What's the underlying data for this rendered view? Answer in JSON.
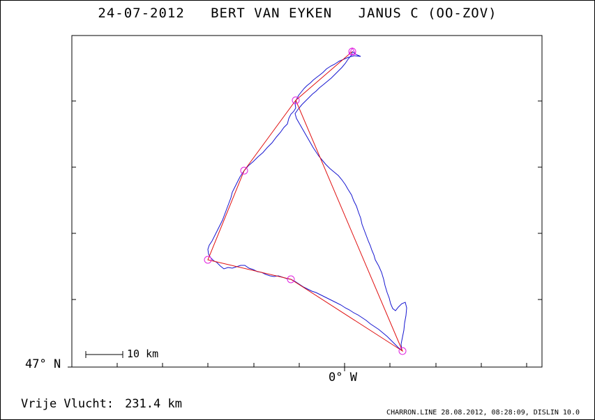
{
  "title": {
    "date": "24-07-2012",
    "pilot": "BERT VAN EYKEN",
    "glider": "JANUS C (OO-ZOV)"
  },
  "axes": {
    "lat_label": "47° N",
    "lon_label": "0° W"
  },
  "scale_bar": {
    "label": "10 km",
    "length_km": 10
  },
  "distance": {
    "label": "Vrije Vlucht:",
    "value": "231.4 km"
  },
  "footer": {
    "text": "CHARRON.LINE 28.08.2012, 08:28:09, DISLIN 10.0"
  },
  "colors": {
    "track": "#1515d0",
    "task": "#e01010",
    "turnpoint": "#e020e0",
    "axis": "#000000"
  }
}
